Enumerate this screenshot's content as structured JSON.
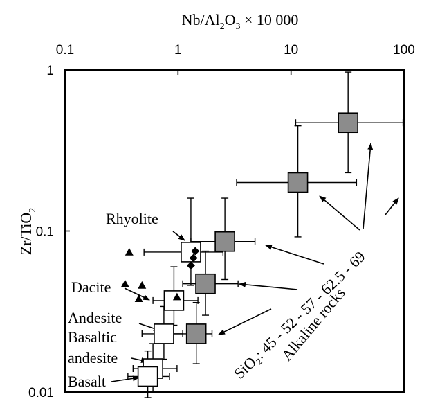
{
  "chart_data": {
    "type": "scatter",
    "x_scale": "log",
    "y_scale": "log",
    "xlim": [
      0.1,
      100
    ],
    "ylim": [
      0.01,
      1
    ],
    "x_ticks": [
      "0.1",
      "1",
      "10",
      "100"
    ],
    "y_ticks": [
      "1",
      "0.1",
      "0.01"
    ],
    "x_axis_position": "top",
    "grid": false,
    "xlabel_parts": {
      "a": "Nb/Al",
      "sub": "2",
      "b": "O",
      "sub2": "3",
      "c": " × 10 000"
    },
    "ylabel_parts": {
      "a": "Zr/TiO",
      "sub": "2"
    },
    "series": [
      {
        "marker": "open-square",
        "points": [
          {
            "label": "Rhyolite",
            "x": 1.3,
            "y": 0.074,
            "x_err": [
              0.5,
              2.5
            ],
            "y_err": [
              0.046,
              0.16
            ]
          },
          {
            "label": "Dacite",
            "x": 0.92,
            "y": 0.037,
            "x_err": [
              0.6,
              1.5
            ],
            "y_err": [
              0.026,
              0.06
            ]
          },
          {
            "label": "Andesite",
            "x": 0.75,
            "y": 0.023,
            "x_err": [
              0.48,
              1.1
            ],
            "y_err": [
              0.016,
              0.034
            ]
          },
          {
            "label": "Basaltic andesite",
            "x": 0.6,
            "y": 0.014,
            "x_err": [
              0.4,
              0.98
            ],
            "y_err": [
              0.01,
              0.02
            ]
          },
          {
            "label": "Basalt",
            "x": 0.54,
            "y": 0.0125,
            "x_err": [
              0.36,
              0.84
            ],
            "y_err": [
              0.009,
              0.018
            ]
          }
        ]
      },
      {
        "marker": "filled-square",
        "fill": "#8c8c8c",
        "points": [
          {
            "x": 1.45,
            "y": 0.023,
            "x_err": [
              0.9,
              2.0
            ],
            "y_err": [
              0.015,
              0.036
            ]
          },
          {
            "x": 1.75,
            "y": 0.047,
            "x_err": [
              1.1,
              3.4
            ],
            "y_err": [
              0.03,
              0.075
            ]
          },
          {
            "x": 2.6,
            "y": 0.086,
            "x_err": [
              1.3,
              4.8
            ],
            "y_err": [
              0.05,
              0.16
            ]
          },
          {
            "x": 11.5,
            "y": 0.2,
            "x_err": [
              3.3,
              38
            ],
            "y_err": [
              0.092,
              0.45
            ]
          },
          {
            "x": 32,
            "y": 0.47,
            "x_err": [
              11,
              98
            ],
            "y_err": [
              0.23,
              0.97
            ]
          }
        ]
      },
      {
        "marker": "triangle",
        "points": [
          {
            "x": 0.37,
            "y": 0.074
          },
          {
            "x": 0.34,
            "y": 0.047
          },
          {
            "x": 0.48,
            "y": 0.046
          },
          {
            "x": 0.45,
            "y": 0.038
          },
          {
            "x": 0.98,
            "y": 0.039
          }
        ]
      },
      {
        "marker": "diamond",
        "points": [
          {
            "x": 1.42,
            "y": 0.075
          },
          {
            "x": 1.37,
            "y": 0.068
          },
          {
            "x": 1.3,
            "y": 0.061
          }
        ]
      }
    ],
    "annotations": {
      "rock_labels": [
        "Rhyolite",
        "Dacite",
        "Andesite",
        "Basaltic",
        "andesite",
        "Basalt"
      ],
      "sio2_text": "SiO₂: 45 - 52 - 57 - 62.5 - 69",
      "alkaline_text": "Alkaline rocks"
    }
  }
}
